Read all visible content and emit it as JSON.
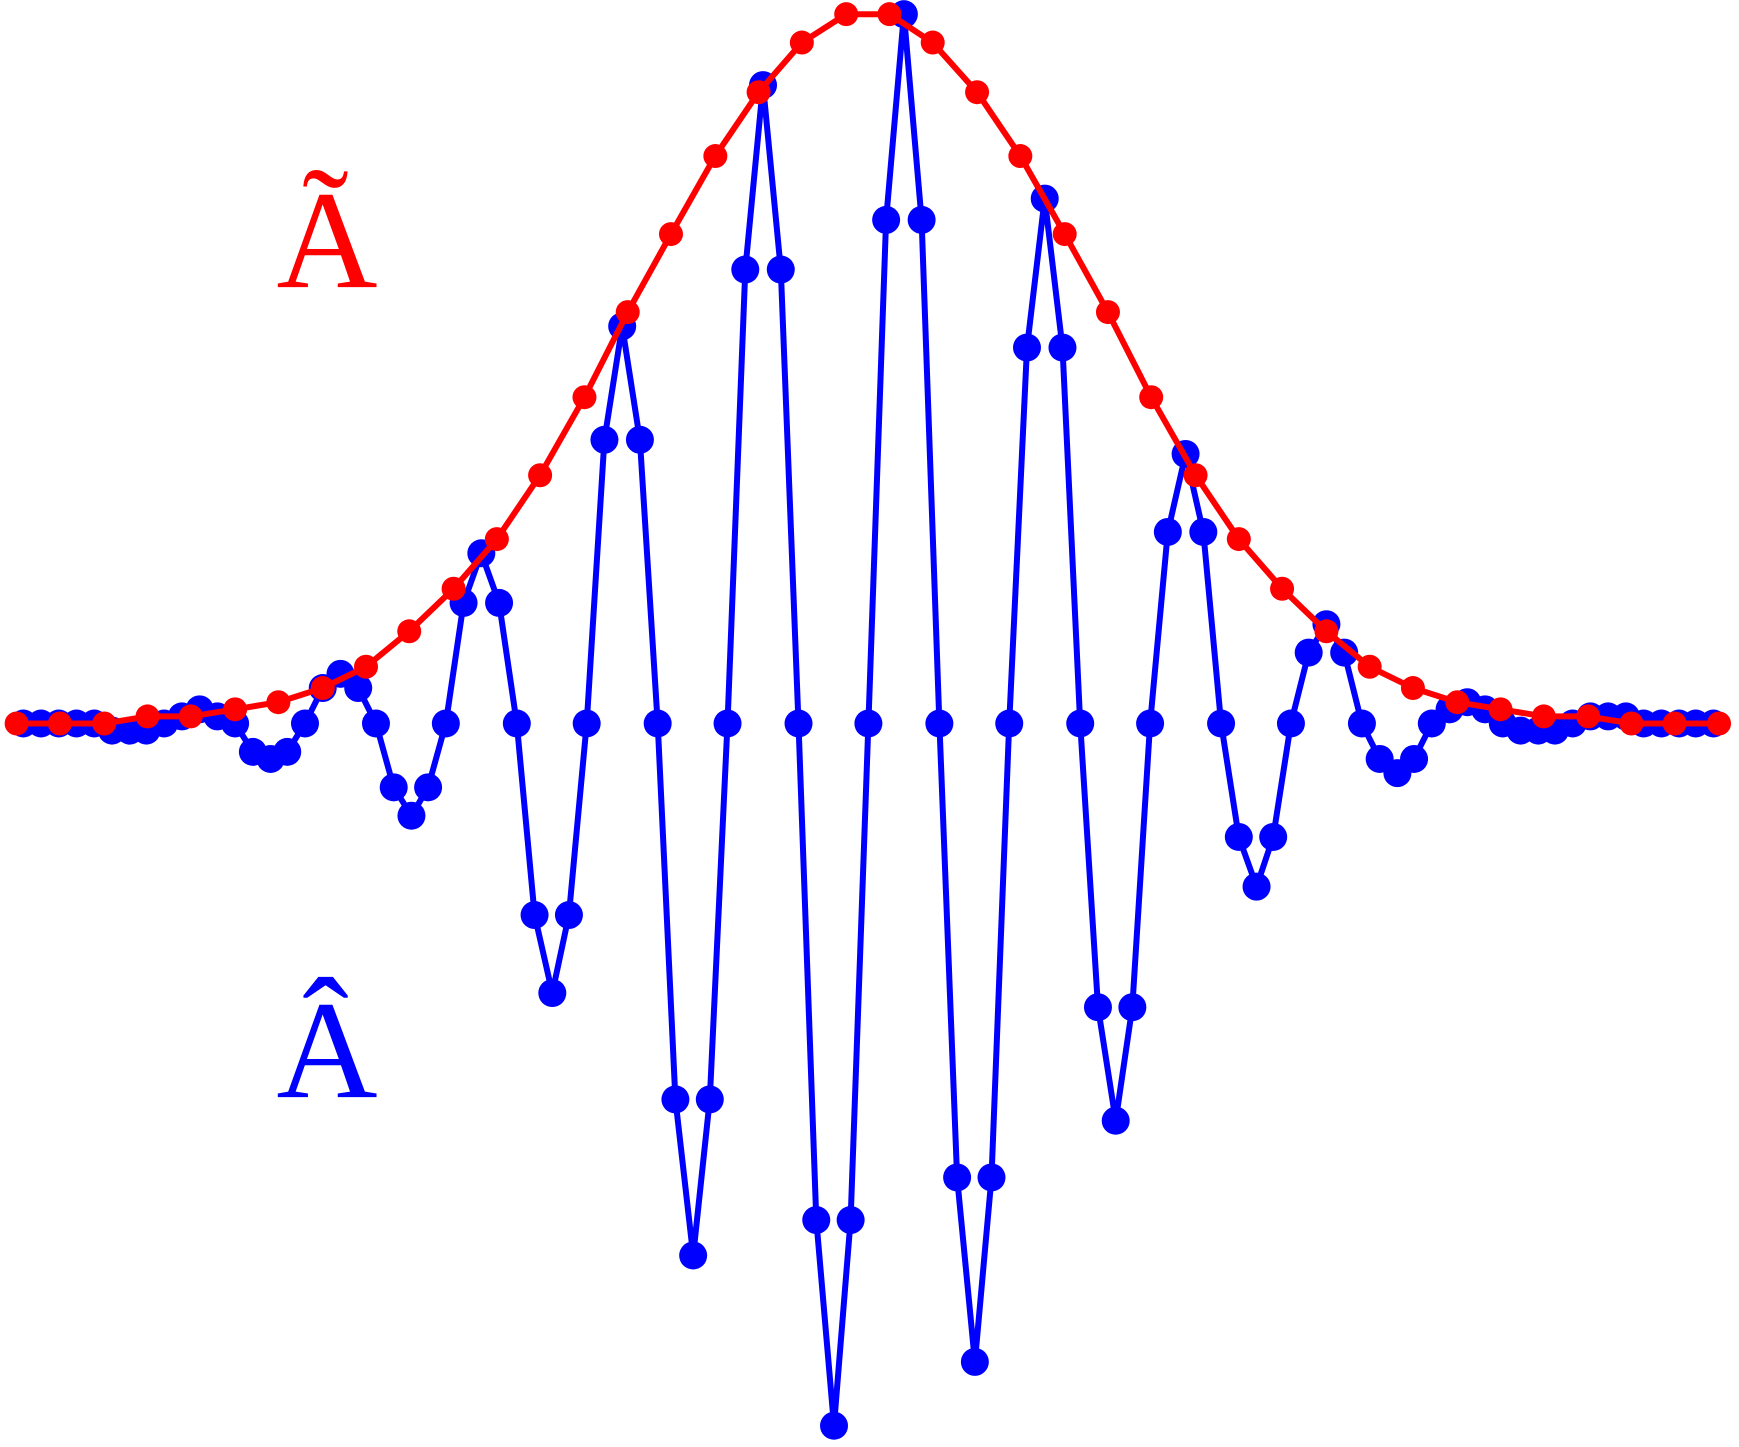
{
  "chart_data": {
    "type": "line",
    "xlim": [
      0,
      1568
    ],
    "ylim": [
      -1.02,
      1.02
    ],
    "series": [
      {
        "name": "Â",
        "color": "#0000ff",
        "x": [
          21,
          37,
          53,
          69,
          85,
          101,
          117,
          132,
          148,
          164,
          180,
          196,
          212,
          228,
          244,
          259,
          275,
          291,
          307,
          323,
          339,
          355,
          371,
          386,
          402,
          418,
          434,
          450,
          466,
          482,
          498,
          513,
          529,
          545,
          561,
          577,
          593,
          609,
          625,
          640,
          656,
          672,
          688,
          704,
          720,
          736,
          752,
          767,
          783,
          799,
          815,
          831,
          847,
          863,
          879,
          894,
          910,
          926,
          942,
          958,
          974,
          990,
          1006,
          1021,
          1037,
          1053,
          1069,
          1085,
          1101,
          1117,
          1133,
          1148,
          1164,
          1180,
          1196,
          1212,
          1228,
          1244,
          1260,
          1275,
          1291,
          1307,
          1323,
          1339,
          1355,
          1371,
          1387,
          1402,
          1418,
          1434,
          1450,
          1466,
          1482,
          1498,
          1514,
          1529,
          1545
        ],
        "values": [
          0,
          0,
          0,
          0,
          0,
          -0.01,
          -0.01,
          -0.01,
          0,
          0.01,
          0.02,
          0.01,
          0,
          -0.04,
          -0.05,
          -0.04,
          0,
          0.05,
          0.07,
          0.05,
          0,
          -0.09,
          -0.13,
          -0.09,
          0,
          0.17,
          0.24,
          0.17,
          0,
          -0.27,
          -0.38,
          -0.27,
          0,
          0.4,
          0.56,
          0.4,
          0,
          -0.53,
          -0.75,
          -0.53,
          0,
          0.64,
          0.9,
          0.64,
          0,
          -0.7,
          -0.99,
          -0.7,
          0,
          0.71,
          1.0,
          0.71,
          0,
          -0.64,
          -0.9,
          -0.64,
          0,
          0.53,
          0.74,
          0.53,
          0,
          -0.4,
          -0.56,
          -0.4,
          0,
          0.27,
          0.38,
          0.27,
          0,
          -0.16,
          -0.23,
          -0.16,
          0,
          0.1,
          0.14,
          0.1,
          0,
          -0.05,
          -0.07,
          -0.05,
          0,
          0.02,
          0.03,
          0.02,
          0,
          -0.01,
          -0.01,
          -0.01,
          0,
          0.01,
          0.01,
          0.01,
          0,
          0,
          0,
          0,
          0
        ]
      },
      {
        "name": "Ã",
        "color": "#ff0000",
        "x": [
          15,
          54,
          94,
          133,
          172,
          212,
          251,
          291,
          330,
          369,
          409,
          448,
          487,
          527,
          566,
          605,
          645,
          684,
          723,
          763,
          802,
          841,
          881,
          920,
          960,
          999,
          1038,
          1078,
          1117,
          1156,
          1196,
          1235,
          1274,
          1314,
          1353,
          1392,
          1432,
          1471,
          1510,
          1550
        ],
        "values": [
          0,
          0,
          0,
          0.01,
          0.01,
          0.02,
          0.03,
          0.05,
          0.08,
          0.13,
          0.19,
          0.26,
          0.35,
          0.46,
          0.58,
          0.69,
          0.8,
          0.89,
          0.96,
          1.0,
          1.0,
          0.96,
          0.89,
          0.8,
          0.69,
          0.58,
          0.46,
          0.35,
          0.26,
          0.19,
          0.13,
          0.08,
          0.05,
          0.03,
          0.02,
          0.01,
          0.01,
          0,
          0,
          0
        ]
      }
    ]
  }
}
